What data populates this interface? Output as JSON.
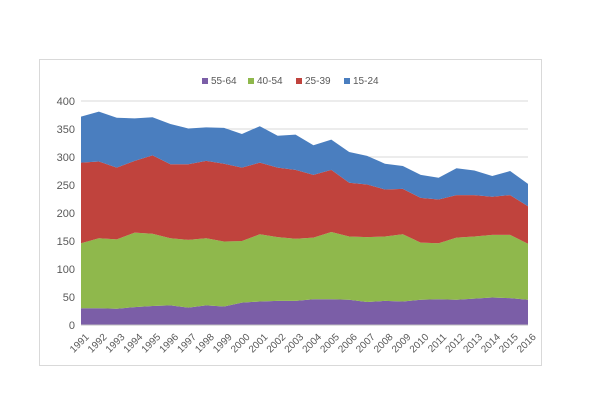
{
  "chart_data": {
    "type": "area",
    "stacked": true,
    "title": "",
    "xlabel": "",
    "ylabel": "",
    "ylim": [
      0,
      400
    ],
    "yticks": [
      0,
      50,
      100,
      150,
      200,
      250,
      300,
      350,
      400
    ],
    "grid": true,
    "legend_position": "top",
    "x": [
      "1991",
      "1992",
      "1993",
      "1994",
      "1995",
      "1996",
      "1997",
      "1998",
      "1999",
      "2000",
      "2001",
      "2002",
      "2003",
      "2004",
      "2005",
      "2006",
      "2007",
      "2008",
      "2009",
      "2010",
      "2011",
      "2012",
      "2013",
      "2014",
      "2015",
      "2016"
    ],
    "series": [
      {
        "name": "55-64",
        "color": "#7b5ea7",
        "values": [
          30,
          30,
          29,
          32,
          34,
          35,
          31,
          35,
          33,
          40,
          42,
          43,
          43,
          46,
          46,
          45,
          41,
          43,
          42,
          45,
          46,
          45,
          47,
          49,
          48,
          45
        ]
      },
      {
        "name": "40-54",
        "color": "#8fb84c",
        "values": [
          116,
          125,
          124,
          133,
          129,
          120,
          121,
          120,
          116,
          110,
          120,
          114,
          111,
          110,
          120,
          113,
          116,
          115,
          120,
          102,
          100,
          111,
          111,
          112,
          113,
          100
        ]
      },
      {
        "name": "25-39",
        "color": "#c0433d",
        "values": [
          144,
          137,
          128,
          128,
          140,
          132,
          135,
          138,
          139,
          131,
          128,
          124,
          123,
          112,
          111,
          96,
          94,
          84,
          81,
          80,
          78,
          76,
          74,
          68,
          71,
          67
        ]
      },
      {
        "name": "15-24",
        "color": "#4a7ebf",
        "values": [
          82,
          89,
          89,
          76,
          68,
          72,
          64,
          60,
          64,
          60,
          65,
          57,
          63,
          53,
          54,
          55,
          51,
          46,
          41,
          41,
          39,
          48,
          44,
          37,
          43,
          40
        ]
      }
    ]
  }
}
